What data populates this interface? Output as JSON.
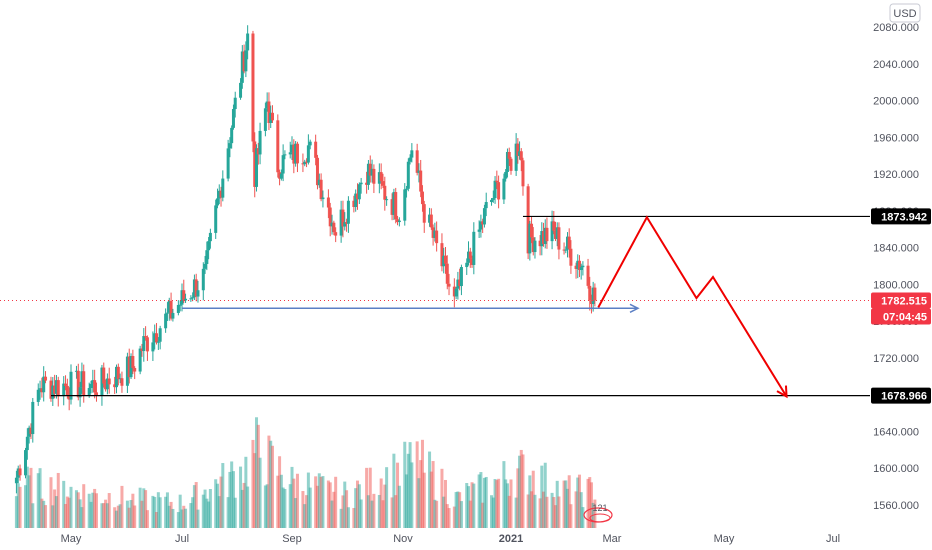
{
  "currency_badge": "USD",
  "colors": {
    "up": "#26a69a",
    "down": "#ef5350",
    "projection": "#f00000",
    "level_line": "#000000",
    "support_arrow": "#5b7fc4",
    "price_tag": "#f23645",
    "level_tag": "#000000"
  },
  "chart_data": {
    "type": "candlestick",
    "title": "",
    "y_axis": {
      "ticks": [
        "2080.000",
        "2040.000",
        "2000.000",
        "1960.000",
        "1920.000",
        "1880.000",
        "1840.000",
        "1800.000",
        "1760.000",
        "1720.000",
        "1680.000",
        "1640.000",
        "1600.000",
        "1560.000"
      ],
      "range": [
        1546,
        2096
      ]
    },
    "x_axis": {
      "ticks": [
        "May",
        "Jul",
        "Sep",
        "Nov",
        "2021",
        "Mar",
        "May",
        "Jul"
      ]
    },
    "price_path": [
      {
        "date": "2020-04-01",
        "close": 1590
      },
      {
        "date": "2020-04-14",
        "close": 1690
      },
      {
        "date": "2020-05-15",
        "close": 1690
      },
      {
        "date": "2020-06-04",
        "close": 1710
      },
      {
        "date": "2020-06-10",
        "close": 1735
      },
      {
        "date": "2020-06-30",
        "close": 1780
      },
      {
        "date": "2020-07-14",
        "close": 1810
      },
      {
        "date": "2020-07-22",
        "close": 1900
      },
      {
        "date": "2020-07-31",
        "close": 1995
      },
      {
        "date": "2020-08-07",
        "close": 2070
      },
      {
        "date": "2020-08-11",
        "close": 1920
      },
      {
        "date": "2020-08-18",
        "close": 2000
      },
      {
        "date": "2020-08-24",
        "close": 1930
      },
      {
        "date": "2020-09-10",
        "close": 1950
      },
      {
        "date": "2020-09-25",
        "close": 1860
      },
      {
        "date": "2020-10-12",
        "close": 1925
      },
      {
        "date": "2020-10-30",
        "close": 1880
      },
      {
        "date": "2020-11-06",
        "close": 1950
      },
      {
        "date": "2020-11-13",
        "close": 1880
      },
      {
        "date": "2020-11-30",
        "close": 1780
      },
      {
        "date": "2020-12-18",
        "close": 1880
      },
      {
        "date": "2021-01-06",
        "close": 1955
      },
      {
        "date": "2021-01-11",
        "close": 1850
      },
      {
        "date": "2021-01-26",
        "close": 1855
      },
      {
        "date": "2021-02-12",
        "close": 1820
      },
      {
        "date": "2021-02-19",
        "close": 1783
      }
    ],
    "volume_profile": [
      {
        "date": "2020-04-01",
        "v": 0.55
      },
      {
        "date": "2020-05-01",
        "v": 0.45
      },
      {
        "date": "2020-06-01",
        "v": 0.35
      },
      {
        "date": "2020-07-01",
        "v": 0.3
      },
      {
        "date": "2020-08-05",
        "v": 0.7
      },
      {
        "date": "2020-08-12",
        "v": 0.95
      },
      {
        "date": "2020-09-01",
        "v": 0.55
      },
      {
        "date": "2020-10-01",
        "v": 0.4
      },
      {
        "date": "2020-11-09",
        "v": 0.8
      },
      {
        "date": "2020-12-01",
        "v": 0.35
      },
      {
        "date": "2021-01-08",
        "v": 0.7
      },
      {
        "date": "2021-02-01",
        "v": 0.45
      },
      {
        "date": "2021-02-19",
        "v": 0.45
      }
    ],
    "levels": [
      {
        "value": 1873.942,
        "label": "1873.942",
        "from": "2021-01-08"
      },
      {
        "value": 1678.966,
        "label": "1678.966",
        "from": "2020-04-20"
      }
    ],
    "support_arrow": {
      "value": 1774,
      "from": "2020-07-01",
      "to": "2021-03-01"
    },
    "projection_path": [
      {
        "date": "2021-02-21",
        "value": 1775
      },
      {
        "date": "2021-03-20",
        "value": 1873
      },
      {
        "date": "2021-04-16",
        "value": 1785
      },
      {
        "date": "2021-04-25",
        "value": 1808
      },
      {
        "date": "2021-06-05",
        "value": 1678
      }
    ],
    "last_price": {
      "value": 1782.515,
      "label": "1782.515",
      "countdown": "07:04:45"
    },
    "watermark_text": "121"
  }
}
